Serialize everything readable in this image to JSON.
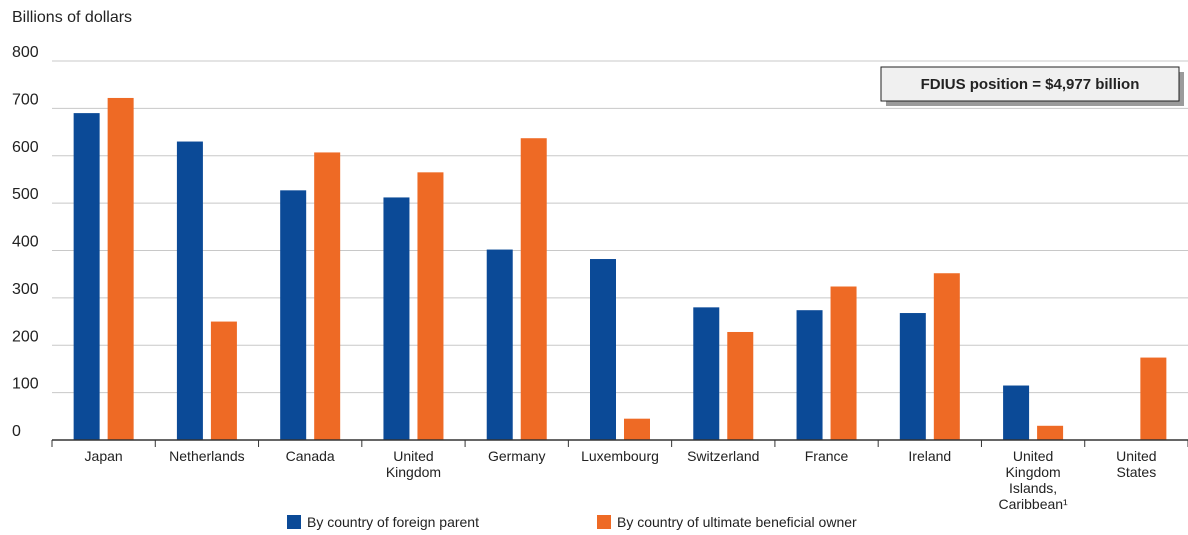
{
  "chart_data": {
    "type": "bar",
    "ylabel": "Billions of dollars",
    "ylim": [
      0,
      800
    ],
    "yticks": [
      0,
      100,
      200,
      300,
      400,
      500,
      600,
      700,
      800
    ],
    "grid": true,
    "annotation": "FDIUS position = $4,977 billion",
    "categories": [
      [
        "Japan"
      ],
      [
        "Netherlands"
      ],
      [
        "Canada"
      ],
      [
        "United",
        "Kingdom"
      ],
      [
        "Germany"
      ],
      [
        "Luxembourg"
      ],
      [
        "Switzerland"
      ],
      [
        "France"
      ],
      [
        "Ireland"
      ],
      [
        "United",
        "Kingdom",
        "Islands,",
        "Caribbean¹"
      ],
      [
        "United",
        "States"
      ]
    ],
    "series": [
      {
        "name": "By country of foreign parent",
        "color": "#0b4a97",
        "values": [
          690,
          630,
          527,
          512,
          402,
          382,
          280,
          274,
          268,
          115,
          null
        ]
      },
      {
        "name": "By country of ultimate beneficial owner",
        "color": "#ee6a25",
        "values": [
          722,
          250,
          607,
          565,
          637,
          45,
          228,
          324,
          352,
          30,
          174
        ]
      }
    ],
    "legend_position": "bottom"
  }
}
